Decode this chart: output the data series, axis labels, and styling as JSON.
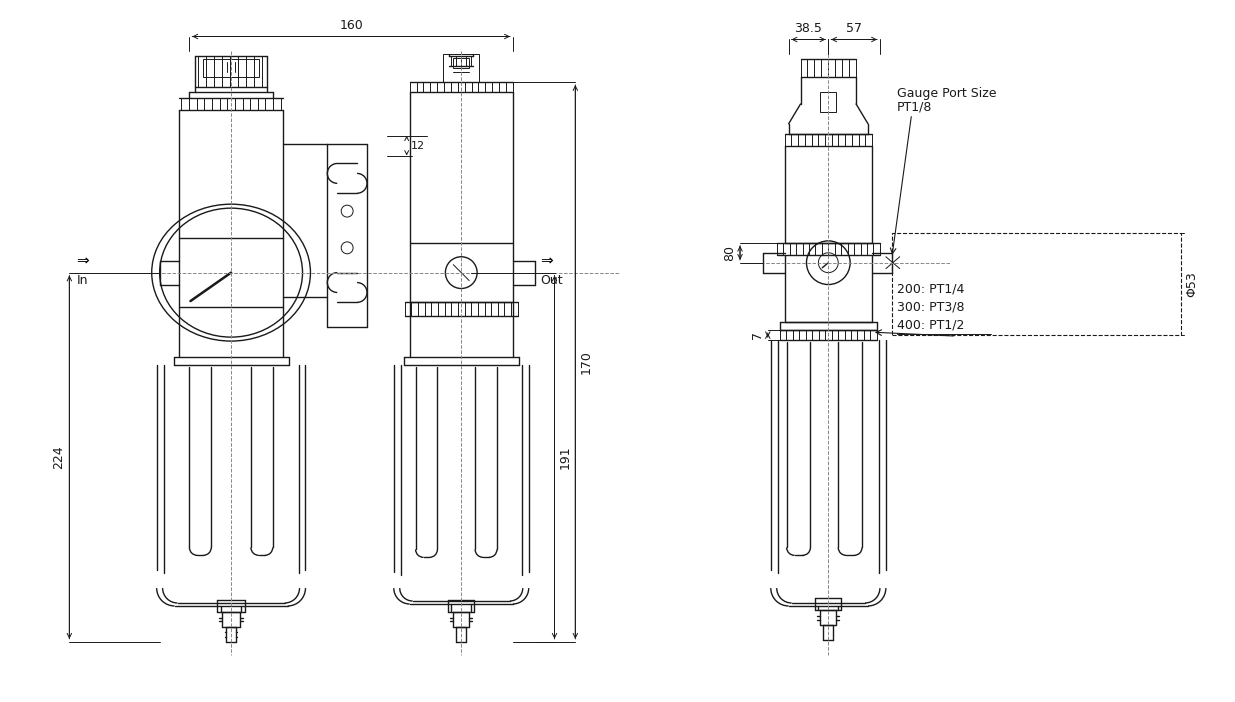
{
  "bg_color": "#ffffff",
  "line_color": "#1a1a1a",
  "dim_color": "#1a1a1a",
  "dash_color": "#888888",
  "fig_width": 12.35,
  "fig_height": 7.02,
  "annotations": {
    "dim_160": "160",
    "dim_224": "224",
    "dim_170": "170",
    "dim_191": "191",
    "dim_12": "12",
    "dim_38_5": "38.5",
    "dim_57": "57",
    "dim_80": "80",
    "dim_7": "7",
    "dim_phi53": "Φ53",
    "label_in": "In",
    "label_out": "Out",
    "arrow_in": "⇒",
    "arrow_out": "⇒",
    "gauge_port": "Gauge Port Size",
    "pt_1_8": "PT1/8",
    "pt_200": "200: PT1/4",
    "pt_300": "300: PT3/8",
    "pt_400": "400: PT1/2"
  }
}
